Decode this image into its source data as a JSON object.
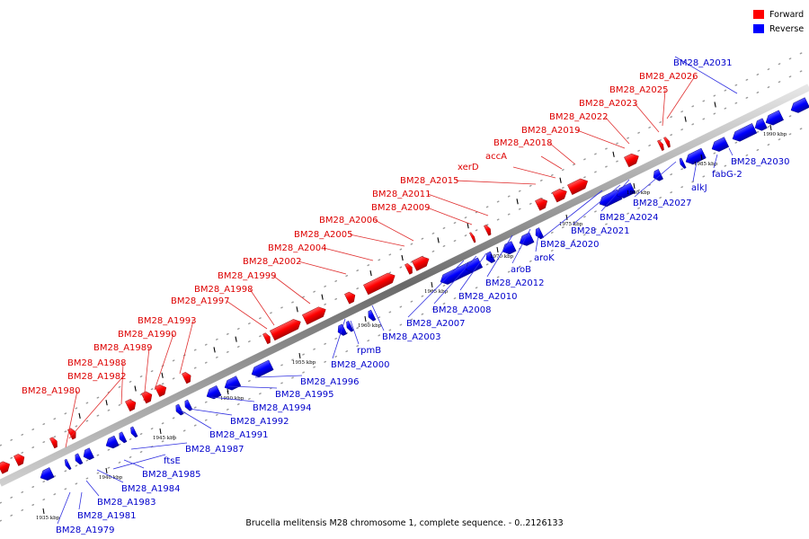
{
  "legend": {
    "forward_label": "Forward",
    "reverse_label": "Reverse",
    "forward_color": "#ff0000",
    "reverse_color": "#0000ff"
  },
  "caption": "Brucella melitensis M28 chromosome 1, complete sequence. - 0..2126133",
  "scale_ticks": [
    "1935 kbp",
    "1940 kbp",
    "1945 kbp",
    "1950 kbp",
    "1955 kbp",
    "1960 kbp",
    "1965 kbp",
    "1970 kbp",
    "1975 kbp",
    "1980 kbp",
    "1985 kbp",
    "1990 kbp"
  ],
  "forward_genes": [
    "BM28_A1980",
    "BM28_A1982",
    "BM28_A1988",
    "BM28_A1989",
    "BM28_A1990",
    "BM28_A1993",
    "BM28_A1997",
    "BM28_A1998",
    "BM28_A1999",
    "BM28_A2002",
    "BM28_A2004",
    "BM28_A2005",
    "BM28_A2006",
    "BM28_A2009",
    "BM28_A2011",
    "BM28_A2015",
    "xerD",
    "accA",
    "BM28_A2018",
    "BM28_A2019",
    "BM28_A2022",
    "BM28_A2023",
    "BM28_A2025",
    "BM28_A2026"
  ],
  "reverse_genes": [
    "BM28_A1979",
    "BM28_A1981",
    "BM28_A1983",
    "BM28_A1984",
    "ftsE",
    "BM28_A1985",
    "BM28_A1987",
    "BM28_A1991",
    "BM28_A1992",
    "BM28_A1994",
    "BM28_A1995",
    "BM28_A1996",
    "BM28_A2000",
    "rpmB",
    "BM28_A2003",
    "BM28_A2007",
    "BM28_A2008",
    "BM28_A2010",
    "BM28_A2012",
    "aroB",
    "aroK",
    "BM28_A2020",
    "BM28_A2021",
    "BM28_A2024",
    "BM28_A2027",
    "alkJ",
    "fabG-2",
    "BM28_A2030",
    "BM28_A2031"
  ]
}
